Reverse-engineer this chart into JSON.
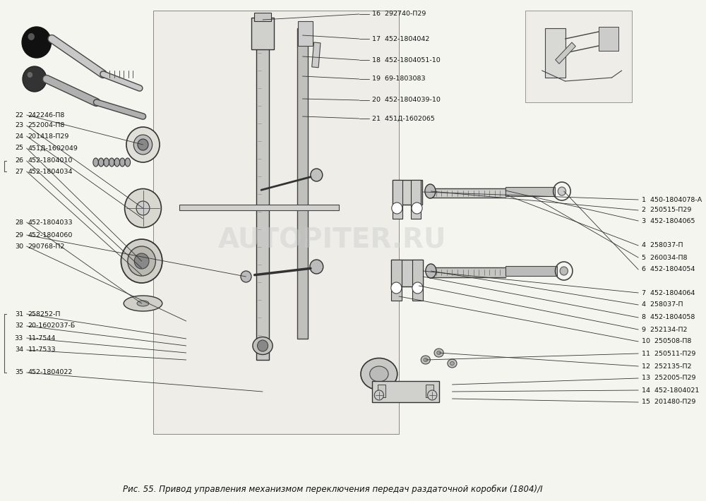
{
  "title": "",
  "caption": "Рис. 55. Привод управления механизмом переключения передач раздаточной коробки (1804)/I",
  "background_color": "#f5f5f0",
  "fig_width": 10.0,
  "fig_height": 7.1,
  "watermark": "AUTOPITER.RU",
  "left_labels": [
    [
      22,
      "242246-П8"
    ],
    [
      23,
      "252004-П8"
    ],
    [
      24,
      "201418-П29"
    ],
    [
      25,
      "451Д-1602049"
    ],
    [
      26,
      "452-1804010"
    ],
    [
      27,
      "452-1804034"
    ],
    [
      28,
      "452-1804033"
    ],
    [
      29,
      "452-1804060"
    ],
    [
      30,
      "290768-П2"
    ],
    [
      31,
      "258252-П"
    ],
    [
      32,
      "20-1602037-Б"
    ],
    [
      33,
      "11-7544"
    ],
    [
      34,
      "11-7533"
    ],
    [
      35,
      "452-1804022"
    ]
  ],
  "right_labels": [
    [
      1,
      "450-1804078-А"
    ],
    [
      2,
      "250515-П29"
    ],
    [
      3,
      "452-1804065"
    ],
    [
      4,
      "258037-П"
    ],
    [
      5,
      "260034-П8"
    ],
    [
      6,
      "452-1804054"
    ],
    [
      7,
      "452-1804064"
    ],
    [
      4,
      "258037-П"
    ],
    [
      8,
      "452-1804058"
    ],
    [
      9,
      "252134-П2"
    ],
    [
      10,
      "250508-П8"
    ],
    [
      11,
      "250511-П29"
    ],
    [
      12,
      "252135-П2"
    ],
    [
      13,
      "252005-П29"
    ],
    [
      14,
      "452-1804021"
    ],
    [
      15,
      "201480-П29"
    ]
  ],
  "top_labels": [
    [
      16,
      "292740-П29"
    ],
    [
      17,
      "452-1804042"
    ],
    [
      18,
      "452-1804051-10"
    ],
    [
      19,
      "69-1803083"
    ],
    [
      20,
      "452-1804039-10"
    ],
    [
      21,
      "451Д-1602065"
    ]
  ]
}
